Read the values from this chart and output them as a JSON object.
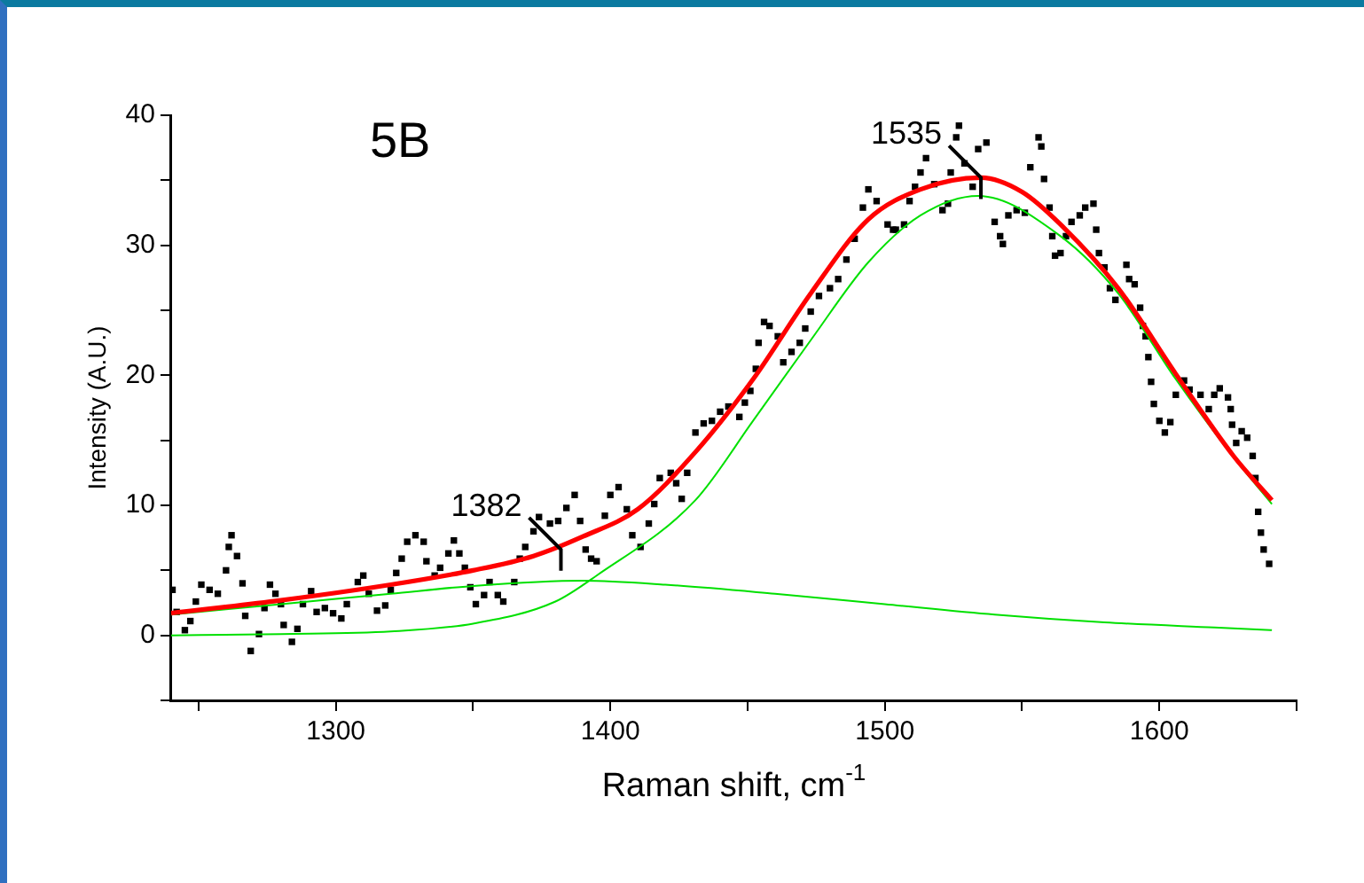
{
  "chart_data": {
    "type": "scatter",
    "title": "5B",
    "xlabel": "Raman shift, cm$^{-1}$",
    "ylabel": "Intensity (A.U.)",
    "annotations": [
      {
        "text": "1382",
        "x": 1382,
        "y": 6.6
      },
      {
        "text": "1535",
        "x": 1535,
        "y": 35.2
      }
    ],
    "xlim": [
      1240,
      1650
    ],
    "ylim": [
      -5,
      40
    ],
    "xticks": [
      {
        "value": 1250,
        "label": null
      },
      1300,
      {
        "value": 1350,
        "label": null
      },
      1400,
      {
        "value": 1450,
        "label": null
      },
      1500,
      {
        "value": 1550,
        "label": null
      },
      1600,
      {
        "value": 1650,
        "label": null
      }
    ],
    "yticks": [
      {
        "value": -5,
        "label": null
      },
      0,
      {
        "value": 5,
        "label": null
      },
      10,
      {
        "value": 15,
        "label": null
      },
      20,
      {
        "value": 25,
        "label": null
      },
      30,
      {
        "value": 35,
        "label": null
      },
      40
    ],
    "grid": false,
    "legend": false,
    "series": [
      {
        "color": "#000000",
        "marker": "square",
        "x": [
          1240.5,
          1242,
          1245,
          1247,
          1249,
          1251,
          1254,
          1257,
          1260,
          1261,
          1262,
          1264,
          1266,
          1267,
          1269,
          1272,
          1274,
          1276,
          1278,
          1280,
          1281,
          1284,
          1286,
          1288,
          1291,
          1293,
          1296,
          1299,
          1302,
          1304,
          1308,
          1310,
          1312,
          1315,
          1318,
          1320,
          1322,
          1324,
          1326,
          1329,
          1332,
          1333,
          1336,
          1338,
          1341,
          1343,
          1345,
          1347,
          1349,
          1351,
          1354,
          1356,
          1359,
          1361,
          1365,
          1367,
          1369,
          1372,
          1374,
          1378,
          1381,
          1384,
          1387,
          1389,
          1391,
          1393,
          1395,
          1398,
          1400,
          1403,
          1406,
          1408,
          1411,
          1414,
          1416,
          1418,
          1422,
          1424,
          1426,
          1428,
          1431,
          1434,
          1437,
          1440,
          1443,
          1447,
          1449,
          1451,
          1453,
          1454,
          1456,
          1458,
          1461,
          1463,
          1466,
          1469,
          1471,
          1473,
          1476,
          1480,
          1483,
          1486,
          1489,
          1492,
          1494,
          1497,
          1501,
          1503,
          1504,
          1507,
          1509,
          1511,
          1513,
          1515,
          1518,
          1521,
          1523,
          1524,
          1526,
          1527,
          1529,
          1532,
          1534,
          1537,
          1540,
          1542,
          1543,
          1545,
          1548,
          1551,
          1553,
          1556,
          1557,
          1558,
          1560,
          1561,
          1562,
          1564,
          1566,
          1568,
          1571,
          1573,
          1576,
          1577,
          1578,
          1580,
          1582,
          1584,
          1588,
          1589,
          1591,
          1593,
          1594,
          1595,
          1596,
          1597,
          1598,
          1600,
          1602,
          1604,
          1606,
          1609,
          1611,
          1615,
          1618,
          1620,
          1622,
          1625,
          1626,
          1626.5,
          1628,
          1630,
          1632,
          1634,
          1635,
          1636,
          1637,
          1638,
          1640
        ],
        "values": [
          3.5,
          1.8,
          0.4,
          1.1,
          2.6,
          3.9,
          3.5,
          3.2,
          5.0,
          6.8,
          7.7,
          6.1,
          4.0,
          1.5,
          -1.2,
          0.1,
          2.1,
          3.9,
          3.2,
          2.4,
          0.8,
          -0.5,
          0.5,
          2.4,
          3.4,
          1.8,
          2.1,
          1.7,
          1.3,
          2.4,
          4.1,
          4.6,
          3.2,
          1.9,
          2.3,
          3.5,
          4.8,
          5.9,
          7.2,
          7.7,
          7.2,
          5.7,
          4.6,
          5.2,
          6.3,
          7.3,
          6.3,
          5.2,
          3.7,
          2.4,
          3.1,
          4.1,
          3.1,
          2.6,
          4.1,
          5.9,
          6.8,
          8.0,
          9.1,
          8.6,
          8.8,
          9.8,
          10.8,
          8.8,
          6.6,
          5.9,
          5.7,
          9.2,
          10.8,
          11.4,
          9.7,
          7.7,
          6.8,
          8.6,
          10.1,
          12.1,
          12.5,
          11.7,
          10.5,
          12.5,
          15.6,
          16.3,
          16.5,
          17.2,
          17.6,
          16.8,
          17.9,
          18.8,
          20.5,
          22.5,
          24.1,
          23.8,
          23.0,
          21.0,
          21.8,
          22.5,
          23.6,
          24.9,
          26.1,
          26.7,
          27.4,
          28.9,
          30.5,
          32.9,
          34.3,
          33.4,
          31.6,
          31.2,
          31.2,
          31.6,
          33.4,
          34.5,
          35.6,
          36.7,
          34.7,
          32.7,
          33.2,
          35.6,
          38.3,
          39.2,
          36.3,
          34.5,
          37.4,
          37.9,
          31.8,
          30.7,
          30.1,
          32.3,
          32.7,
          32.5,
          36.0,
          38.3,
          37.6,
          35.1,
          32.9,
          30.7,
          29.2,
          29.4,
          30.7,
          31.8,
          32.3,
          32.9,
          33.2,
          31.2,
          29.4,
          28.3,
          26.7,
          25.8,
          28.5,
          27.4,
          27.0,
          25.2,
          23.8,
          23.0,
          21.4,
          19.5,
          17.8,
          16.5,
          15.6,
          16.4,
          18.5,
          19.6,
          18.9,
          18.5,
          17.4,
          18.5,
          19.0,
          18.3,
          17.4,
          16.2,
          14.8,
          15.7,
          15.2,
          13.8,
          12.1,
          9.5,
          7.9,
          6.6,
          5.5
        ]
      },
      {
        "type": "line",
        "color": "#00e000",
        "marker": "none",
        "x": [
          1240,
          1280,
          1320,
          1350,
          1390,
          1420,
          1460,
          1500,
          1540,
          1580,
          1620,
          1641
        ],
        "values": [
          1.6,
          2.4,
          3.2,
          3.8,
          4.2,
          3.9,
          3.2,
          2.4,
          1.6,
          1.0,
          0.6,
          0.4
        ]
      },
      {
        "type": "line",
        "color": "#00e000",
        "marker": "none",
        "x": [
          1240,
          1280,
          1320,
          1350,
          1380,
          1395,
          1431,
          1452,
          1473,
          1494,
          1513,
          1534,
          1564,
          1585,
          1606,
          1627,
          1641
        ],
        "values": [
          0,
          0.1,
          0.3,
          0.9,
          2.6,
          4.6,
          10.4,
          16.5,
          22.7,
          28.7,
          32.3,
          33.8,
          30.7,
          26.3,
          19.7,
          13.7,
          10.1
        ]
      },
      {
        "type": "line",
        "color": "#ff0000",
        "marker": "none",
        "x": [
          1240,
          1280,
          1320,
          1350,
          1372,
          1390,
          1410,
          1431,
          1452,
          1473,
          1494,
          1513,
          1535,
          1550,
          1564,
          1585,
          1606,
          1627,
          1641
        ],
        "values": [
          1.7,
          2.7,
          3.9,
          5.0,
          6.1,
          7.6,
          9.7,
          14.1,
          19.7,
          26.3,
          32.0,
          34.3,
          35.2,
          34.1,
          31.6,
          26.7,
          20.1,
          13.8,
          10.4
        ]
      }
    ]
  }
}
